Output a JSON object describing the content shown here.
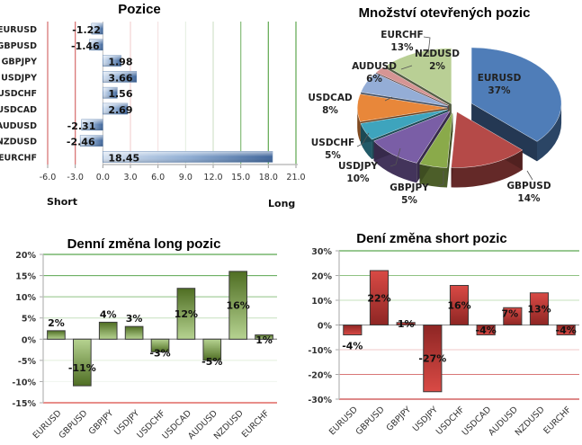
{
  "chart_data": [
    {
      "id": "positions",
      "type": "bar",
      "orientation": "horizontal",
      "title": "Pozice",
      "categories": [
        "EURUSD",
        "GBPUSD",
        "GBPJPY",
        "USDJPY",
        "USDCHF",
        "USDCAD",
        "AUDUSD",
        "NZDUSD",
        "EURCHF"
      ],
      "values": [
        -1.22,
        -1.46,
        1.98,
        3.66,
        1.56,
        2.69,
        -2.31,
        -2.46,
        18.45
      ],
      "value_labels": [
        "-1.22",
        "-1.46",
        "1.98",
        "3.66",
        "1.56",
        "2.69",
        "-2.31",
        "-2.46",
        "18.45"
      ],
      "xlim": [
        -6,
        21
      ],
      "xticks": [
        "-6.0",
        "-3.0",
        "0.0",
        "3.0",
        "6.0",
        "9.0",
        "12.0",
        "15.0",
        "18.0",
        "21.0"
      ],
      "xlabel_left": "Short",
      "xlabel_right": "Long",
      "grid": true,
      "colors": {
        "bar": "#4a74a8",
        "bar_light": "#c9d8ec",
        "grid_negative": "#d66a6a",
        "grid_positive": "#5aa64f"
      }
    },
    {
      "id": "open-positions-share",
      "type": "pie",
      "title": "Množství otevřených pozic",
      "labels": [
        "EURUSD",
        "GBPUSD",
        "GBPJPY",
        "USDJPY",
        "USDCHF",
        "USDCAD",
        "AUDUSD",
        "NZDUSD",
        "EURCHF"
      ],
      "values": [
        37,
        14,
        5,
        10,
        5,
        8,
        6,
        2,
        13
      ],
      "value_labels": [
        "37%",
        "14%",
        "5%",
        "10%",
        "5%",
        "8%",
        "6%",
        "2%",
        "13%"
      ],
      "colors": [
        "#4f7db8",
        "#b54a48",
        "#8aaa4a",
        "#7a5ea6",
        "#3ea4bd",
        "#e8873a",
        "#94add6",
        "#d69594",
        "#b9cf95"
      ],
      "exploded": true,
      "style": "3d"
    },
    {
      "id": "daily-change-long",
      "type": "bar",
      "title": "Denní změna long pozic",
      "categories": [
        "EURUSD",
        "GBPUSD",
        "GBPJPY",
        "USDJPY",
        "USDCHF",
        "USDCAD",
        "AUDUSD",
        "NZDUSD",
        "EURCHF"
      ],
      "values": [
        2,
        -11,
        4,
        3,
        -3,
        12,
        -5,
        16,
        1
      ],
      "value_labels": [
        "2%",
        "-11%",
        "4%",
        "3%",
        "-3%",
        "12%",
        "-5%",
        "16%",
        "1%"
      ],
      "ylim": [
        -15,
        20
      ],
      "yticks": [
        "20%",
        "15%",
        "10%",
        "5%",
        "0%",
        "-5%",
        "-10%",
        "-15%"
      ],
      "grid": true,
      "colors": {
        "bar_dark": "#4f6e23",
        "bar_light": "#b6d391"
      }
    },
    {
      "id": "daily-change-short",
      "type": "bar",
      "title": "Dení změna short pozic",
      "categories": [
        "EURUSD",
        "GBPUSD",
        "GBPJPY",
        "USDJPY",
        "USDCHF",
        "USDCAD",
        "AUDUSD",
        "NZDUSD",
        "EURCHF"
      ],
      "values": [
        -4,
        22,
        1,
        -27,
        16,
        -4,
        7,
        13,
        -4
      ],
      "value_labels": [
        "-4%",
        "22%",
        "1%",
        "-27%",
        "16%",
        "-4%",
        "7%",
        "13%",
        "-4%"
      ],
      "ylim": [
        -30,
        30
      ],
      "yticks": [
        "30%",
        "20%",
        "10%",
        "0%",
        "-10%",
        "-20%",
        "-30%"
      ],
      "grid": true,
      "colors": {
        "bar_dark": "#8e2624",
        "bar_light": "#d94a45"
      }
    }
  ]
}
